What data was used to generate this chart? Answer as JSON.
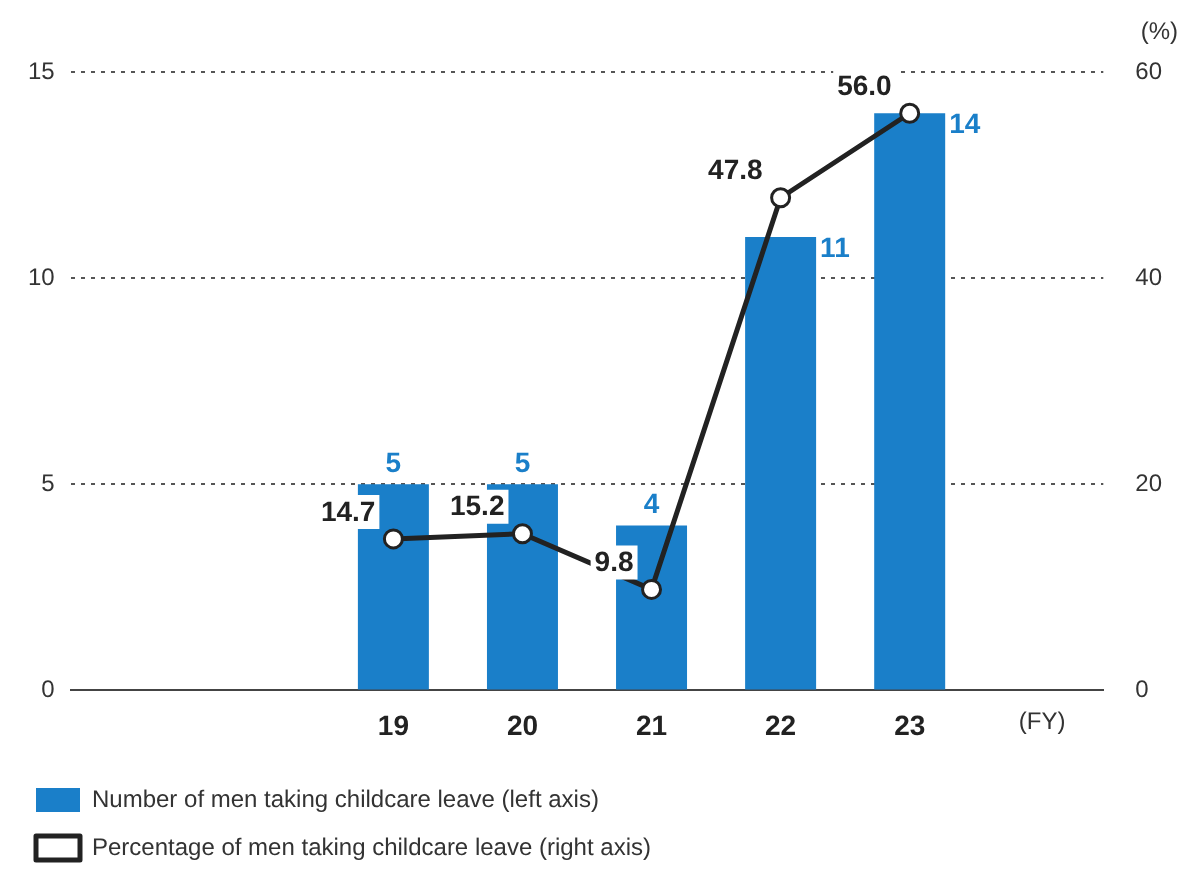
{
  "chart_data": {
    "type": "bar",
    "categories": [
      null,
      null,
      "19",
      "20",
      "21",
      "22",
      "23",
      null
    ],
    "xlabel": "(FY)",
    "y2label": "(%)",
    "series": [
      {
        "name": "Number of men taking childcare leave (left axis)",
        "color": "#1a7fc9",
        "values": [
          null,
          null,
          5,
          5,
          4,
          11,
          14,
          null
        ]
      },
      {
        "name": "Percentage of men taking childcare leave (right axis)",
        "type": "line",
        "axis": "y2",
        "color": "#222222",
        "marker": "circle",
        "values": [
          null,
          null,
          14.7,
          15.2,
          9.8,
          47.8,
          56.0,
          null
        ],
        "value_labels": [
          null,
          null,
          "14.7",
          "15.2",
          "9.8",
          "47.8",
          "56.0",
          null
        ]
      }
    ],
    "ylim": [
      0,
      15
    ],
    "yticks": [
      0,
      5,
      10,
      15
    ],
    "y2lim": [
      0,
      60
    ],
    "y2ticks": [
      0,
      20,
      40,
      60
    ],
    "grid": "y",
    "legend": "bottom",
    "data_labels": true
  }
}
